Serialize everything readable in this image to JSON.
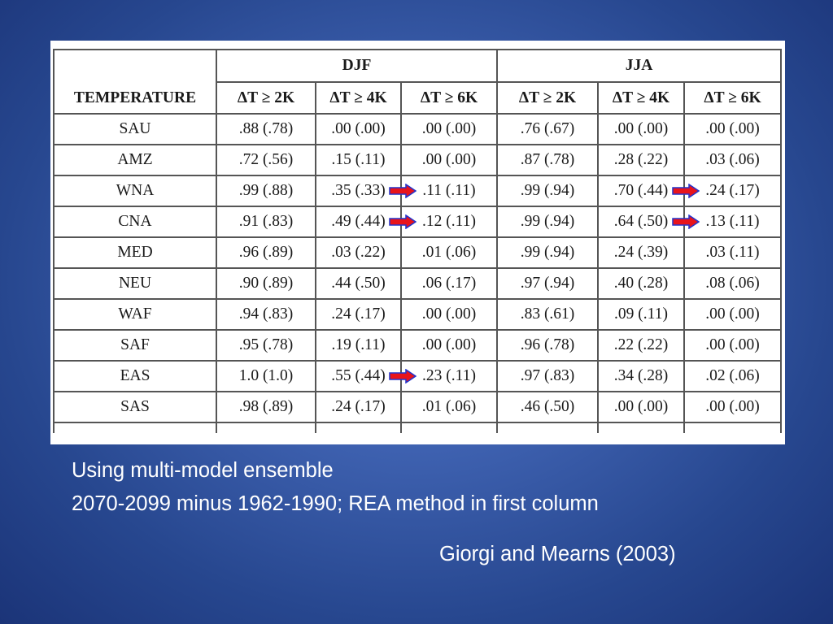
{
  "table": {
    "header_label": "TEMPERATURE",
    "groups": [
      "DJF",
      "JJA"
    ],
    "thresholds": [
      "ΔT ≥ 2K",
      "ΔT ≥ 4K",
      "ΔT ≥ 6K",
      "ΔT ≥ 2K",
      "ΔT ≥ 4K",
      "ΔT ≥ 6K"
    ],
    "rows": [
      {
        "region": "SAU",
        "cells": [
          ".88 (.78)",
          ".00 (.00)",
          ".00 (.00)",
          ".76 (.67)",
          ".00 (.00)",
          ".00 (.00)"
        ]
      },
      {
        "region": "AMZ",
        "cells": [
          ".72 (.56)",
          ".15 (.11)",
          ".00 (.00)",
          ".87 (.78)",
          ".28 (.22)",
          ".03 (.06)"
        ]
      },
      {
        "region": "WNA",
        "cells": [
          ".99 (.88)",
          ".35 (.33)",
          ".11 (.11)",
          ".99 (.94)",
          ".70 (.44)",
          ".24 (.17)"
        ]
      },
      {
        "region": "CNA",
        "cells": [
          ".91 (.83)",
          ".49 (.44)",
          ".12 (.11)",
          ".99 (.94)",
          ".64 (.50)",
          ".13 (.11)"
        ]
      },
      {
        "region": "MED",
        "cells": [
          ".96 (.89)",
          ".03 (.22)",
          ".01 (.06)",
          ".99 (.94)",
          ".24 (.39)",
          ".03 (.11)"
        ]
      },
      {
        "region": "NEU",
        "cells": [
          ".90 (.89)",
          ".44 (.50)",
          ".06 (.17)",
          ".97 (.94)",
          ".40 (.28)",
          ".08 (.06)"
        ]
      },
      {
        "region": "WAF",
        "cells": [
          ".94 (.83)",
          ".24 (.17)",
          ".00 (.00)",
          ".83 (.61)",
          ".09 (.11)",
          ".00 (.00)"
        ]
      },
      {
        "region": "SAF",
        "cells": [
          ".95 (.78)",
          ".19 (.11)",
          ".00 (.00)",
          ".96 (.78)",
          ".22 (.22)",
          ".00 (.00)"
        ]
      },
      {
        "region": "EAS",
        "cells": [
          "1.0 (1.0)",
          ".55 (.44)",
          ".23 (.11)",
          ".97 (.83)",
          ".34 (.28)",
          ".02 (.06)"
        ]
      },
      {
        "region": "SAS",
        "cells": [
          ".98 (.89)",
          ".24 (.17)",
          ".01 (.06)",
          ".46 (.50)",
          ".00 (.00)",
          ".00 (.00)"
        ]
      }
    ],
    "arrow_color": "#e8141b",
    "arrow_outline": "#2233cc"
  },
  "caption": {
    "line1": "Using multi-model ensemble",
    "line2": "2070-2099 minus 1962-1990; REA method in first column",
    "citation": "Giorgi and Mearns (2003)"
  }
}
